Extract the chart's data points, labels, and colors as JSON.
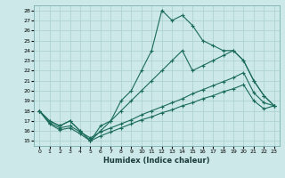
{
  "xlabel": "Humidex (Indice chaleur)",
  "background_color": "#cce8e8",
  "line_color": "#1a6b5a",
  "xlim": [
    -0.5,
    23.5
  ],
  "ylim": [
    14.5,
    28.5
  ],
  "xticks": [
    0,
    1,
    2,
    3,
    4,
    5,
    6,
    7,
    8,
    9,
    10,
    11,
    12,
    13,
    14,
    15,
    16,
    17,
    18,
    19,
    20,
    21,
    22,
    23
  ],
  "yticks": [
    15,
    16,
    17,
    18,
    19,
    20,
    21,
    22,
    23,
    24,
    25,
    26,
    27,
    28
  ],
  "line1_x": [
    0,
    1,
    2,
    3,
    4,
    5,
    6,
    7,
    8,
    9,
    10,
    11,
    12,
    13,
    14,
    15,
    16,
    17,
    18,
    19,
    20,
    21,
    22,
    23
  ],
  "line1_y": [
    18,
    17,
    16.5,
    17,
    16,
    15,
    16.5,
    17,
    19,
    20,
    22,
    24,
    28,
    27,
    27.5,
    26.5,
    25,
    24.5,
    24,
    24,
    23,
    21,
    19.5,
    18.5
  ],
  "line2_x": [
    0,
    1,
    2,
    3,
    4,
    5,
    6,
    7,
    8,
    9,
    10,
    11,
    12,
    13,
    14,
    15,
    16,
    17,
    18,
    19,
    20,
    21,
    22,
    23
  ],
  "line2_y": [
    18,
    17,
    16.5,
    17,
    16,
    15,
    16,
    17,
    18,
    19,
    20,
    21,
    22,
    23,
    24,
    22,
    22.5,
    23,
    23.5,
    24,
    23,
    21,
    19.5,
    18.5
  ],
  "line3_x": [
    0,
    1,
    2,
    3,
    4,
    5,
    6,
    7,
    8,
    9,
    10,
    11,
    12,
    13,
    14,
    15,
    16,
    17,
    18,
    19,
    20,
    21,
    22,
    23
  ],
  "line3_y": [
    18,
    16.8,
    16.3,
    16.5,
    15.9,
    15.3,
    15.9,
    16.3,
    16.7,
    17.1,
    17.6,
    18.0,
    18.4,
    18.8,
    19.2,
    19.7,
    20.1,
    20.5,
    20.9,
    21.3,
    21.8,
    19.8,
    18.8,
    18.5
  ],
  "line4_x": [
    0,
    1,
    2,
    3,
    4,
    5,
    6,
    7,
    8,
    9,
    10,
    11,
    12,
    13,
    14,
    15,
    16,
    17,
    18,
    19,
    20,
    21,
    22,
    23
  ],
  "line4_y": [
    18,
    16.7,
    16.1,
    16.3,
    15.7,
    15.0,
    15.5,
    15.9,
    16.3,
    16.7,
    17.1,
    17.4,
    17.8,
    18.1,
    18.5,
    18.8,
    19.2,
    19.5,
    19.9,
    20.2,
    20.6,
    19.0,
    18.2,
    18.5
  ],
  "grid_color": "#aacece"
}
